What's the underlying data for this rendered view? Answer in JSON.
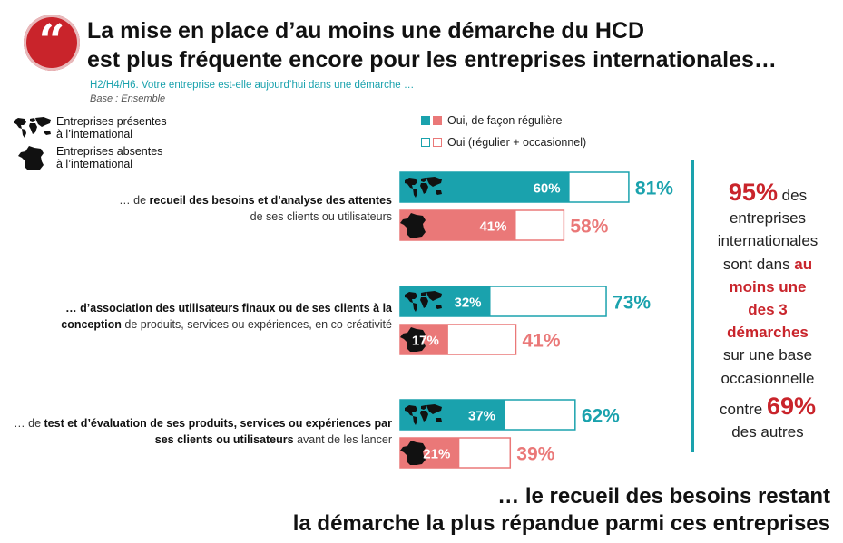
{
  "header": {
    "quote_glyph": "“",
    "title_line1": "La mise en place d’au moins une démarche du HCD",
    "title_line2": "est plus fréquente encore pour les entreprises internationales…",
    "question": "H2/H4/H6. Votre entreprise est-elle aujourd’hui dans une démarche …",
    "base": "Base : Ensemble"
  },
  "legend": {
    "international_line1": "Entreprises présentes",
    "international_line2": "à l’international",
    "national_line1": "Entreprises absentes",
    "national_line2": "à l’international",
    "regular": "Oui, de façon régulière",
    "total": "Oui (régulier + occasionnel)"
  },
  "rows": [
    {
      "label_line1": [
        {
          "t": "… de ",
          "b": false
        },
        {
          "t": "recueil des besoins et d’analyse des attentes",
          "b": true
        }
      ],
      "label_line2": [
        {
          "t": "de ses clients ou utilisateurs",
          "b": false
        }
      ]
    },
    {
      "label_line1": [
        {
          "t": "… d’association des utilisateurs finaux ou de ses clients à la",
          "b": true
        }
      ],
      "label_line2": [
        {
          "t": "conception",
          "b": true
        },
        {
          "t": " de produits, services ou expériences, en co-créativité",
          "b": false
        }
      ]
    },
    {
      "label_line1": [
        {
          "t": "… de ",
          "b": false
        },
        {
          "t": "test et d’évaluation de ses produits, services ou expériences par",
          "b": true
        }
      ],
      "label_line2": [
        {
          "t": "ses clients ou utilisateurs",
          "b": true
        },
        {
          "t": " avant de les lancer",
          "b": false
        }
      ]
    }
  ],
  "chart_data": {
    "type": "bar",
    "orientation": "horizontal",
    "categories": [
      "… de recueil des besoins et d’analyse des attentes de ses clients ou utilisateurs",
      "… d’association des utilisateurs finaux ou de ses clients à la conception de produits, services ou expériences, en co-créativité",
      "… de test et d’évaluation de ses produits, services ou expériences par ses clients ou utilisateurs avant de les lancer"
    ],
    "groups": [
      "Entreprises présentes à l’international",
      "Entreprises absentes à l’international"
    ],
    "series": [
      {
        "name": "Oui, de façon régulière",
        "values": [
          [
            60,
            41
          ],
          [
            32,
            17
          ],
          [
            37,
            21
          ]
        ],
        "labels": [
          [
            "60%",
            "41%"
          ],
          [
            "32%",
            "17%"
          ],
          [
            "37%",
            "21%"
          ]
        ]
      },
      {
        "name": "Oui (régulier + occasionnel)",
        "values": [
          [
            81,
            58
          ],
          [
            73,
            41
          ],
          [
            62,
            39
          ]
        ],
        "labels": [
          [
            "81%",
            "58%"
          ],
          [
            "73%",
            "41%"
          ],
          [
            "62%",
            "39%"
          ]
        ]
      }
    ],
    "xlim": [
      0,
      100
    ],
    "colors": {
      "international": "#1aa2ad",
      "national": "#ea7878"
    }
  },
  "side": {
    "pct95": "95%",
    "t1": " des",
    "t2": "entreprises",
    "t3": "internationales",
    "t4": "sont dans ",
    "r1": "au",
    "r2": "moins une",
    "r3": "des 3",
    "r4": "démarches",
    "t5": "sur une base",
    "t6": "occasionnelle",
    "t7": "contre ",
    "pct69": "69%",
    "t8": "des autres"
  },
  "conclusion": {
    "line1": "… le recueil des besoins restant",
    "line2": "la démarche la plus répandue parmi ces entreprises"
  }
}
